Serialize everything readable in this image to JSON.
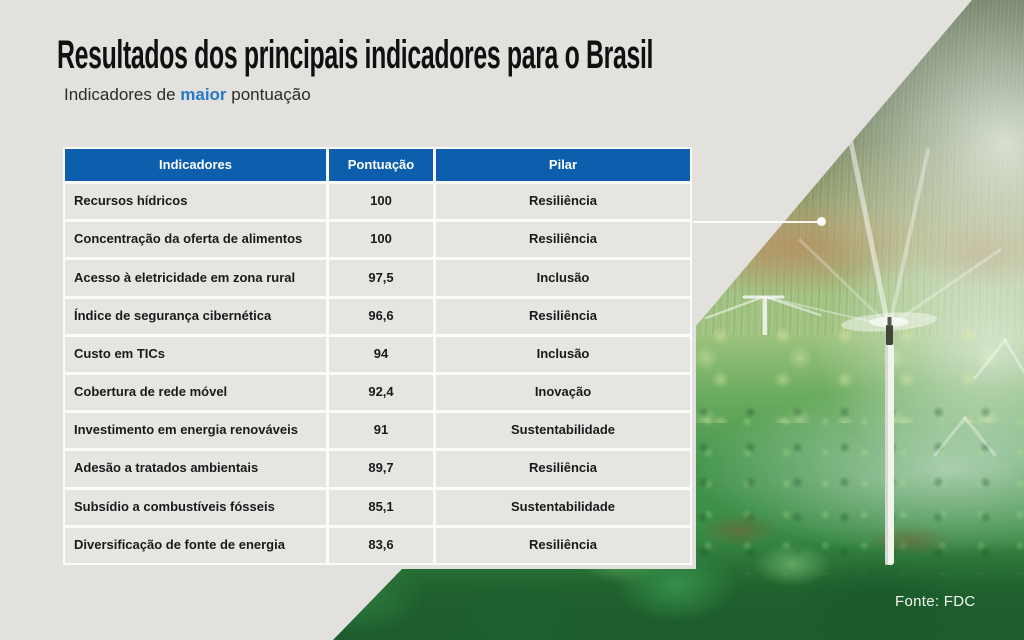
{
  "slide": {
    "title": "Resultados dos principais indicadores para o Brasil",
    "subtitle": {
      "prefix": "Indicadores de ",
      "highlight": "maior",
      "suffix": " pontuação"
    },
    "source": "Fonte: FDC"
  },
  "table": {
    "columns": [
      "Indicadores",
      "Pontuação",
      "Pilar"
    ],
    "rows": [
      {
        "indicator": "Recursos hídricos",
        "score": "100",
        "pillar": "Resiliência"
      },
      {
        "indicator": "Concentração da oferta de alimentos",
        "score": "100",
        "pillar": "Resiliência"
      },
      {
        "indicator": "Acesso à eletricidade em zona rural",
        "score": "97,5",
        "pillar": "Inclusão"
      },
      {
        "indicator": "Índice de segurança cibernética",
        "score": "96,6",
        "pillar": "Resiliência"
      },
      {
        "indicator": "Custo em TICs",
        "score": "94",
        "pillar": "Inclusão"
      },
      {
        "indicator": "Cobertura de rede móvel",
        "score": "92,4",
        "pillar": "Inovação"
      },
      {
        "indicator": "Investimento em energia renováveis",
        "score": "91",
        "pillar": "Sustentabilidade"
      },
      {
        "indicator": "Adesão a tratados ambientais",
        "score": "89,7",
        "pillar": "Resiliência"
      },
      {
        "indicator": "Subsídio a combustíveis fósseis",
        "score": "85,1",
        "pillar": "Sustentabilidade"
      },
      {
        "indicator": "Diversificação de fonte de energia",
        "score": "83,6",
        "pillar": "Resiliência"
      }
    ]
  },
  "colors": {
    "header_blue": "#0D5FAE",
    "highlight_blue": "#2878C8",
    "slide_gray": "#E2E1DE",
    "row_gray": "#E6E5E2",
    "title_black": "#101010",
    "border_white": "#FBFBFA"
  }
}
